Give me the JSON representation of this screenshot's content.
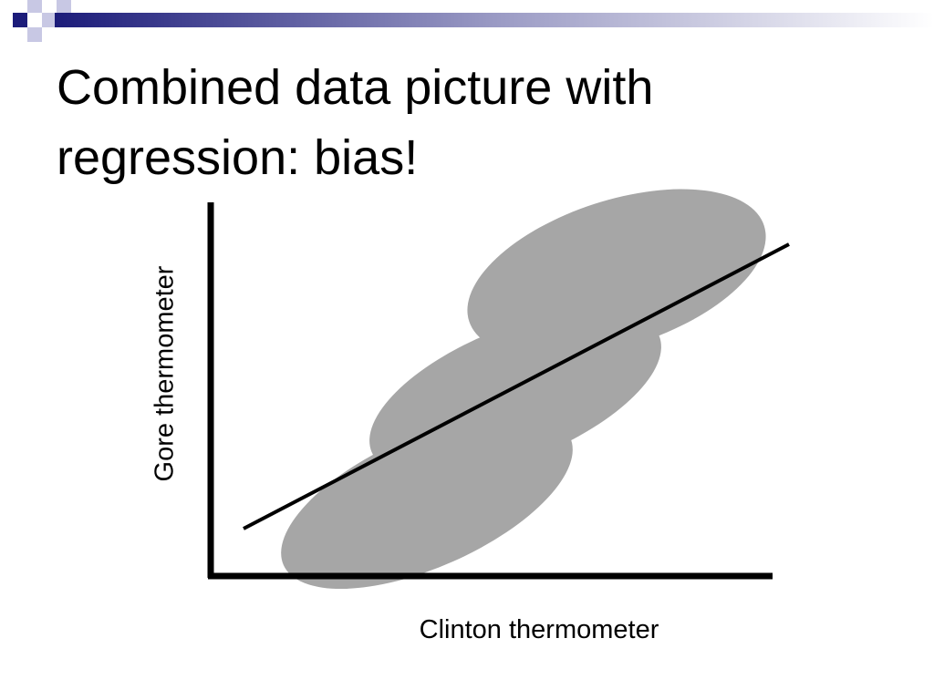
{
  "slide": {
    "title_lines": [
      "Combined data picture with",
      "regression: bias!"
    ],
    "diagram": {
      "y_axis_label": "Gore thermometer",
      "x_axis_label": "Clinton thermometer"
    }
  }
}
